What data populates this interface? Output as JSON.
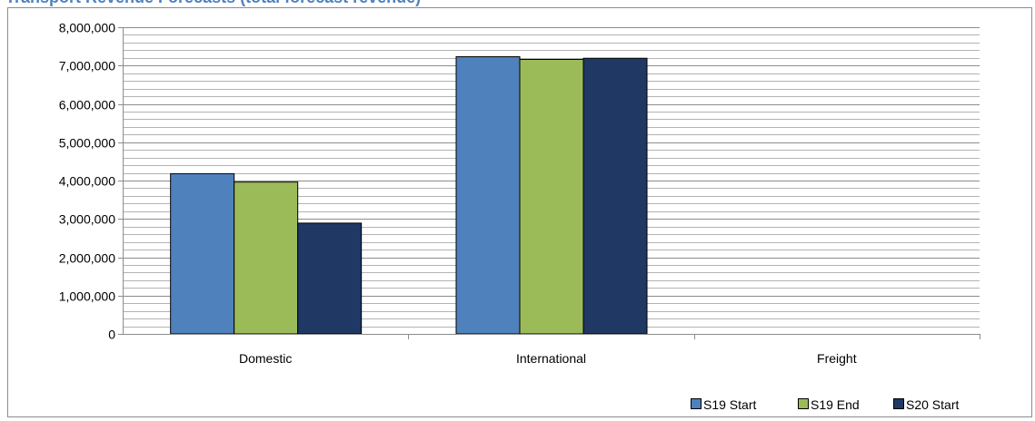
{
  "chart_data": {
    "type": "bar",
    "title": "Transport Revenue Forecasts (total forecast revenue)",
    "categories": [
      "Domestic",
      "International",
      "Freight"
    ],
    "series": [
      {
        "name": "S19 Start",
        "color": "#4f81bd",
        "values": [
          4180000,
          7230000,
          0
        ]
      },
      {
        "name": "S19 End",
        "color": "#9bbb59",
        "values": [
          3960000,
          7160000,
          0
        ]
      },
      {
        "name": "S20 Start",
        "color": "#1f3864",
        "values": [
          2890000,
          7190000,
          0
        ]
      }
    ],
    "ylim": [
      0,
      8000000
    ],
    "y_major_ticks": [
      "0",
      "1,000,000",
      "2,000,000",
      "3,000,000",
      "4,000,000",
      "5,000,000",
      "6,000,000",
      "7,000,000",
      "8,000,000"
    ],
    "grid": true,
    "legend_position": "bottom-right"
  }
}
